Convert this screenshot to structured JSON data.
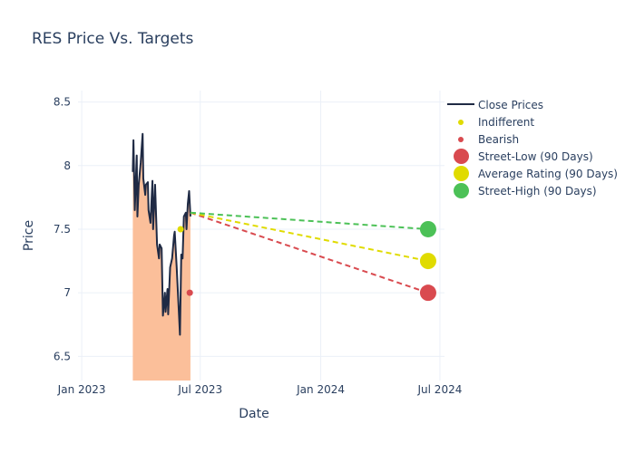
{
  "chart_data": {
    "type": "line",
    "title": "RES Price Vs. Targets",
    "xlabel": "Date",
    "ylabel": "Price",
    "xlim": [
      "2022-12-18",
      "2024-07-08"
    ],
    "ylim": [
      6.31,
      8.59
    ],
    "x_ticks": [
      {
        "date": "2023-01-01",
        "label": "Jan 2023"
      },
      {
        "date": "2023-07-01",
        "label": "Jul 2023"
      },
      {
        "date": "2024-01-01",
        "label": "Jan 2024"
      },
      {
        "date": "2024-07-01",
        "label": "Jul 2024"
      }
    ],
    "y_ticks": [
      6.5,
      7,
      7.5,
      8,
      8.5
    ],
    "y_tick_labels": [
      "6.5",
      "7",
      "7.5",
      "8",
      "8.5"
    ],
    "grid": true,
    "legend_position": "right",
    "series": [
      {
        "name": "Close Prices",
        "kind": "line-fill",
        "color": "#1f2a44",
        "fill_color": "#fbbf9a",
        "points": [
          [
            "2023-03-20",
            7.95
          ],
          [
            "2023-03-21",
            8.2
          ],
          [
            "2023-03-23",
            7.65
          ],
          [
            "2023-03-26",
            8.08
          ],
          [
            "2023-03-27",
            7.6
          ],
          [
            "2023-03-29",
            7.85
          ],
          [
            "2023-04-01",
            8.02
          ],
          [
            "2023-04-04",
            8.25
          ],
          [
            "2023-04-05",
            7.9
          ],
          [
            "2023-04-08",
            7.77
          ],
          [
            "2023-04-09",
            7.85
          ],
          [
            "2023-04-12",
            7.87
          ],
          [
            "2023-04-13",
            7.65
          ],
          [
            "2023-04-16",
            7.55
          ],
          [
            "2023-04-19",
            7.88
          ],
          [
            "2023-04-20",
            7.5
          ],
          [
            "2023-04-23",
            7.85
          ],
          [
            "2023-04-26",
            7.38
          ],
          [
            "2023-04-29",
            7.27
          ],
          [
            "2023-04-30",
            7.38
          ],
          [
            "2023-05-03",
            7.35
          ],
          [
            "2023-05-05",
            6.82
          ],
          [
            "2023-05-08",
            7.0
          ],
          [
            "2023-05-09",
            6.85
          ],
          [
            "2023-05-12",
            7.03
          ],
          [
            "2023-05-13",
            6.83
          ],
          [
            "2023-05-16",
            7.2
          ],
          [
            "2023-05-19",
            7.27
          ],
          [
            "2023-05-22",
            7.45
          ],
          [
            "2023-05-23",
            7.48
          ],
          [
            "2023-05-26",
            7.2
          ],
          [
            "2023-05-31",
            6.67
          ],
          [
            "2023-06-02",
            7.3
          ],
          [
            "2023-06-04",
            7.27
          ],
          [
            "2023-06-06",
            7.6
          ],
          [
            "2023-06-09",
            7.63
          ],
          [
            "2023-06-10",
            7.5
          ],
          [
            "2023-06-12",
            7.7
          ],
          [
            "2023-06-14",
            7.8
          ],
          [
            "2023-06-16",
            7.6
          ]
        ]
      },
      {
        "name": "Indifferent",
        "kind": "marker",
        "color": "#e0db00",
        "points": [
          [
            "2023-06-01",
            7.5
          ]
        ]
      },
      {
        "name": "Bearish",
        "kind": "marker",
        "color": "#d94a4f",
        "points": [
          [
            "2023-06-15",
            7.0
          ]
        ]
      },
      {
        "name": "Street-Low (90 Days)",
        "kind": "target",
        "color": "#d94a4f",
        "points": [
          [
            "2023-06-16",
            7.63
          ],
          [
            "2024-06-13",
            7.0
          ]
        ]
      },
      {
        "name": "Average Rating (90 Days)",
        "kind": "target",
        "color": "#e0db00",
        "points": [
          [
            "2023-06-16",
            7.63
          ],
          [
            "2024-06-13",
            7.25
          ]
        ]
      },
      {
        "name": "Street-High (90 Days)",
        "kind": "target",
        "color": "#4cc157",
        "points": [
          [
            "2023-06-16",
            7.63
          ],
          [
            "2024-06-13",
            7.5
          ]
        ]
      }
    ]
  },
  "legend": [
    {
      "label": "Close Prices",
      "symbol": "line",
      "color": "#1f2a44"
    },
    {
      "label": "Indifferent",
      "symbol": "small-dot",
      "color": "#e0db00"
    },
    {
      "label": "Bearish",
      "symbol": "small-dot",
      "color": "#d94a4f"
    },
    {
      "label": "Street-Low (90 Days)",
      "symbol": "big-dot",
      "color": "#d94a4f"
    },
    {
      "label": "Average Rating (90 Days)",
      "symbol": "big-dot",
      "color": "#e0db00"
    },
    {
      "label": "Street-High (90 Days)",
      "symbol": "big-dot",
      "color": "#4cc157"
    }
  ]
}
